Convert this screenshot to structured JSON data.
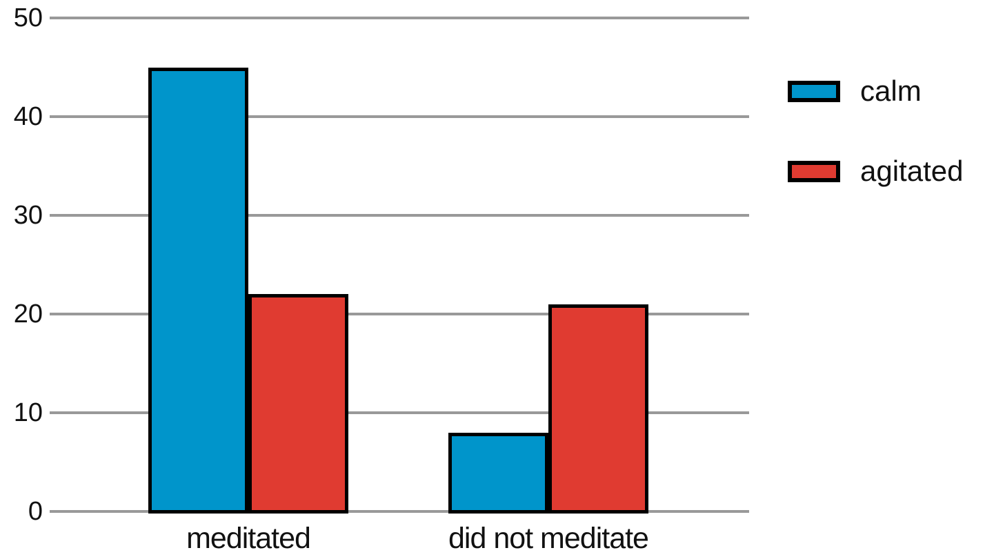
{
  "chart_data": {
    "type": "bar",
    "categories": [
      "meditated",
      "did not meditate"
    ],
    "series": [
      {
        "name": "calm",
        "color": "#0095cb",
        "values": [
          45,
          8
        ]
      },
      {
        "name": "agitated",
        "color": "#e03b31",
        "values": [
          22,
          21
        ]
      }
    ],
    "title": "",
    "xlabel": "",
    "ylabel": "",
    "ylim": [
      0,
      50
    ],
    "yticks": [
      0,
      10,
      20,
      30,
      40,
      50
    ],
    "grid": true,
    "gridline_color": "#999999",
    "bar_border_color": "#000000",
    "text_color": "#111111",
    "background": "#ffffff",
    "legend_position": "right",
    "legend": [
      {
        "label": "calm",
        "color": "#0095cb"
      },
      {
        "label": "agitated",
        "color": "#e03b31"
      }
    ]
  }
}
